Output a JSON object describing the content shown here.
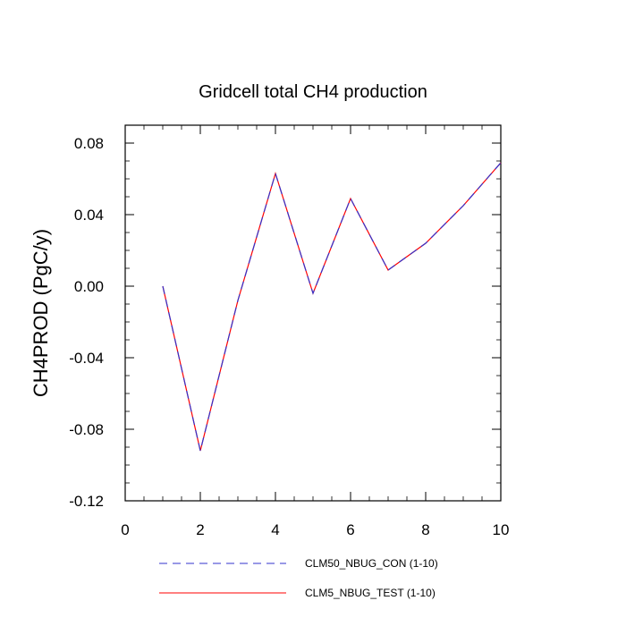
{
  "chart_data": {
    "type": "line",
    "title": "Gridcell total CH4 production",
    "xlabel": "",
    "ylabel": "CH4PROD  (PgC/y)",
    "xlim": [
      0,
      10
    ],
    "ylim": [
      -0.12,
      0.09
    ],
    "x_ticks": [
      0,
      2,
      4,
      6,
      8,
      10
    ],
    "x_tick_labels": [
      "0",
      "2",
      "4",
      "6",
      "8",
      "10"
    ],
    "y_ticks": [
      -0.12,
      -0.08,
      -0.04,
      0.0,
      0.04,
      0.08
    ],
    "y_tick_labels": [
      "-0.12",
      "-0.08",
      "-0.04",
      "0.00",
      "0.04",
      "0.08"
    ],
    "x": [
      1,
      2,
      3,
      4,
      5,
      6,
      7,
      8,
      9,
      10
    ],
    "grid": false,
    "legend_position": "bottom",
    "series": [
      {
        "name": "CLM50_NBUG_CON (1-10)",
        "color": "#3333cc",
        "dash": "dashed",
        "values": [
          0.0,
          -0.092,
          -0.008,
          0.063,
          -0.004,
          0.049,
          0.009,
          0.024,
          0.045,
          0.069
        ]
      },
      {
        "name": "CLM5_NBUG_TEST (1-10)",
        "color": "#ff0000",
        "dash": "solid",
        "values": [
          0.0,
          -0.092,
          -0.008,
          0.063,
          -0.004,
          0.049,
          0.009,
          0.024,
          0.045,
          0.069
        ]
      }
    ]
  }
}
